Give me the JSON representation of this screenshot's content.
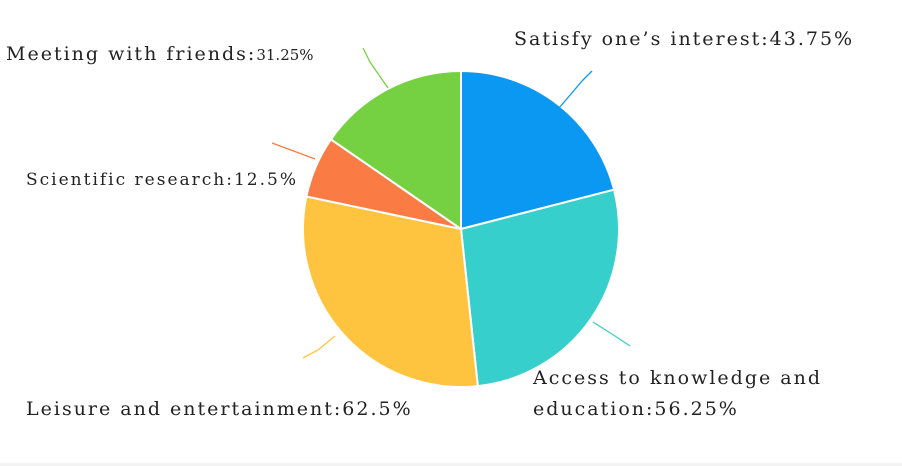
{
  "chart_data": {
    "type": "pie",
    "title": "",
    "slices": [
      {
        "label": "Satisfy one’s interest",
        "percent_label": "43.75%",
        "share": 21.0,
        "color": "#0b98f3"
      },
      {
        "label": "Access to knowledge and education",
        "percent_label": "56.25%",
        "share": 27.3,
        "color": "#37cfcb"
      },
      {
        "label": "Leisure and entertainment",
        "percent_label": "62.5%",
        "share": 30.0,
        "color": "#fec43f"
      },
      {
        "label": "Scientific research",
        "percent_label": "12.5%",
        "share": 6.3,
        "color": "#fb7b45"
      },
      {
        "label": "Meeting with friends",
        "percent_label": "31.25%",
        "share": 15.4,
        "color": "#76d142"
      }
    ],
    "label_text": {
      "satisfy": "Satisfy one’s interest:43.75%",
      "access_line1": "Access to knowledge and",
      "access_line2": "education:56.25%",
      "leisure": "Leisure and entertainment:62.5%",
      "scientific": "Scientific research:12.5%",
      "meeting_name": "Meeting with friends:",
      "meeting_pct": "31.25%"
    }
  }
}
